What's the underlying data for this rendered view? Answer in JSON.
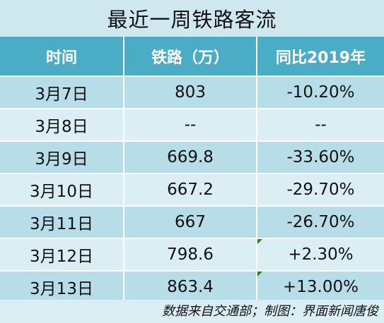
{
  "title": "最近一周铁路客流",
  "headers": [
    "时间",
    "铁路（万）",
    "同比2019年"
  ],
  "rows": [
    {
      "date": "3月7日",
      "railway": "803",
      "yoy": "-10.20%",
      "flag": false
    },
    {
      "date": "3月8日",
      "railway": "--",
      "yoy": "--",
      "flag": false
    },
    {
      "date": "3月9日",
      "railway": "669.8",
      "yoy": "-33.60%",
      "flag": false
    },
    {
      "date": "3月10日",
      "railway": "667.2",
      "yoy": "-29.70%",
      "flag": false
    },
    {
      "date": "3月11日",
      "railway": "667",
      "yoy": "-26.70%",
      "flag": false
    },
    {
      "date": "3月12日",
      "railway": "798.6",
      "yoy": "+2.30%",
      "flag": true
    },
    {
      "date": "3月13日",
      "railway": "863.4",
      "yoy": "+13.00%",
      "flag": true
    }
  ],
  "footer": "数据来自交通部；制图：界面新闻唐俊",
  "colors": {
    "title_bg": "#cfe7ef",
    "header_bg": "#4bacc6",
    "row_odd": "#b7dde8",
    "row_even": "#dbeef4"
  }
}
